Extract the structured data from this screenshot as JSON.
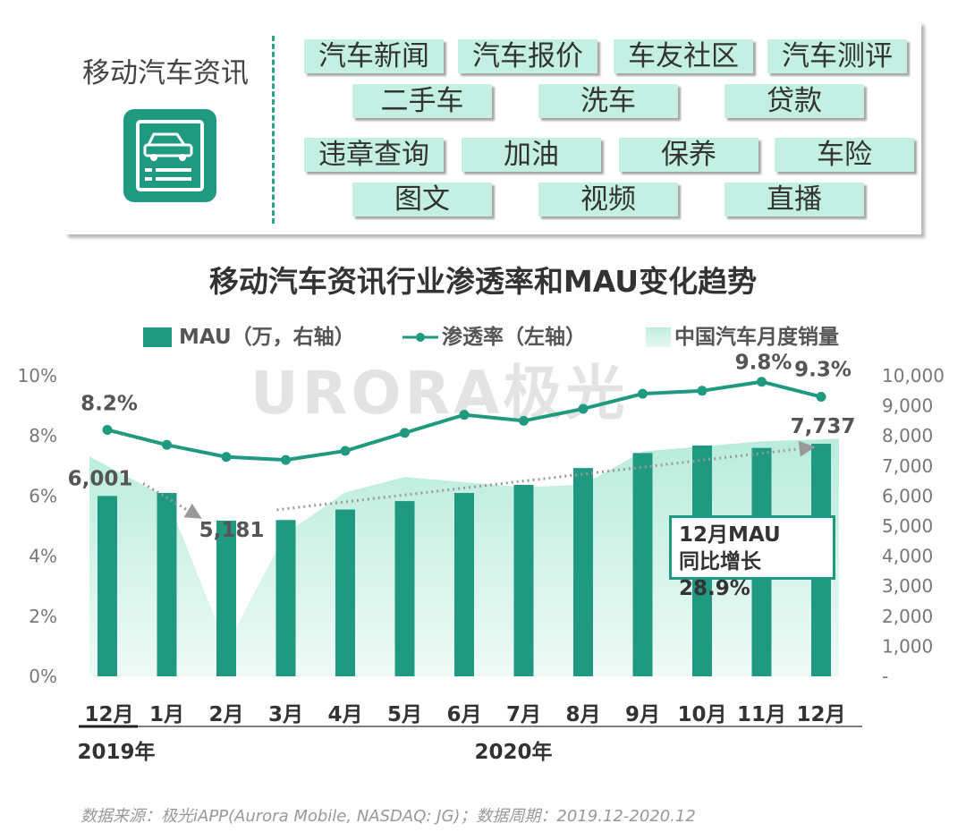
{
  "panel": {
    "title": "移动汽车资讯",
    "icon": "car-document-icon",
    "tags": [
      [
        "汽车新闻",
        "汽车报价",
        "车友社区",
        "汽车测评"
      ],
      [
        "二手车",
        "洗车",
        "贷款"
      ],
      [
        "违章查询",
        "加油",
        "保养",
        "车险"
      ],
      [
        "图文",
        "视频",
        "直播"
      ]
    ]
  },
  "colors": {
    "bar": "#1f9a80",
    "line": "#1f9a80",
    "area": "#bdeee0",
    "tag_bg": "#c4f0e4"
  },
  "watermark": "URORA极光",
  "chart_data": {
    "type": "bar",
    "title": "移动汽车资讯行业渗透率和MAU变化趋势",
    "categories": [
      "12月",
      "1月",
      "2月",
      "3月",
      "4月",
      "5月",
      "6月",
      "7月",
      "8月",
      "9月",
      "10月",
      "11月",
      "12月"
    ],
    "year_groups": [
      {
        "label": "2019年",
        "span": [
          0,
          0
        ]
      },
      {
        "label": "2020年",
        "span": [
          1,
          12
        ]
      }
    ],
    "series": [
      {
        "name": "MAU（万，右轴）",
        "type": "bar",
        "axis": "right",
        "values": [
          6001,
          6100,
          5181,
          5200,
          5550,
          5830,
          6100,
          6370,
          6930,
          7430,
          7680,
          7600,
          7737
        ]
      },
      {
        "name": "渗透率（左轴）",
        "type": "line",
        "axis": "left",
        "values": [
          8.2,
          7.7,
          7.3,
          7.2,
          7.5,
          8.1,
          8.7,
          8.5,
          8.9,
          9.4,
          9.5,
          9.8,
          9.3
        ]
      },
      {
        "name": "中国汽车月度销量",
        "type": "area",
        "values": [
          0.86,
          0.7,
          0.12,
          0.56,
          0.72,
          0.78,
          0.76,
          0.74,
          0.75,
          0.88,
          0.9,
          0.92,
          0.93
        ]
      }
    ],
    "left_axis": {
      "ticks": [
        "0%",
        "2%",
        "4%",
        "6%",
        "8%",
        "10%"
      ],
      "range": [
        0,
        10
      ]
    },
    "right_axis": {
      "ticks": [
        "-",
        "1,000",
        "2,000",
        "3,000",
        "4,000",
        "5,000",
        "6,000",
        "7,000",
        "8,000",
        "9,000",
        "10,000"
      ],
      "range": [
        0,
        10000
      ]
    },
    "labels": {
      "line_first": "8.2%",
      "line_peak": "9.8%",
      "line_last": "9.3%",
      "bar_first": "6,001",
      "bar_min": "5,181",
      "bar_last": "7,737"
    },
    "callout": {
      "line1": "12月MAU",
      "line2": "同比增长28.9%"
    },
    "legend_placement": "top",
    "grid": false
  },
  "source": "数据来源：极光iAPP(Aurora Mobile, NASDAQ: JG)；数据周期：2019.12-2020.12"
}
